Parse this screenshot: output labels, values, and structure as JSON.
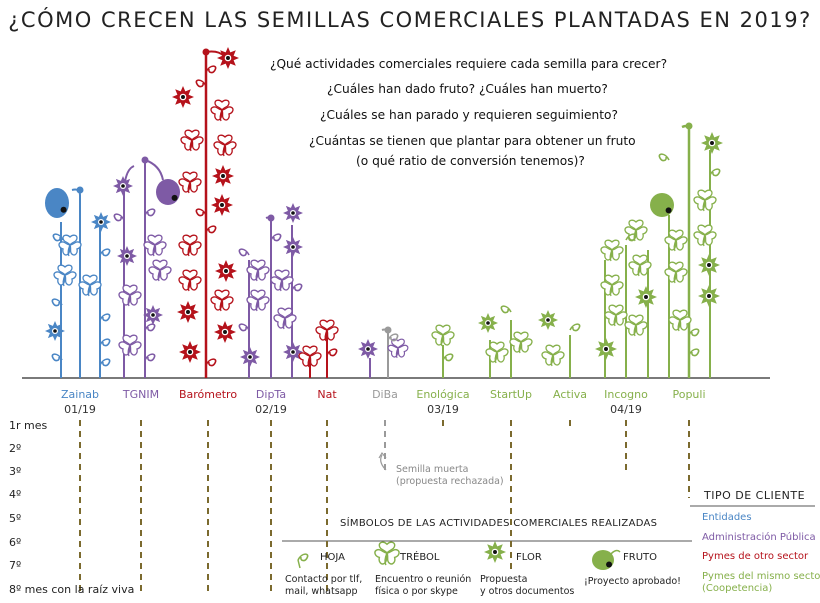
{
  "title": "¿CÓMO CRECEN LAS SEMILLAS COMERCIALES PLANTADAS EN 2019?",
  "questions": [
    "¿Qué actividades comerciales requiere cada semilla  para crecer?",
    "¿Cuáles han dado fruto? ¿Cuáles han muerto?",
    "¿Cuáles se han parado y requieren seguimiento?",
    "¿Cuántas se tienen que plantar para obtener un fruto",
    "(o qué ratio de conversión tenemos)?"
  ],
  "colors": {
    "entidades": "#4a86c5",
    "administracion": "#7e5aa5",
    "pymes_otro": "#b5121b",
    "pymes_mismo": "#86b04b",
    "dead": "#9a9a9a",
    "root": "#7b6a2e",
    "ground": "#7a7a7a"
  },
  "seeds": [
    {
      "name": "Zainab",
      "date": "01/19",
      "client": "entidades",
      "months": 8
    },
    {
      "name": "TGNIM",
      "date": "",
      "client": "administracion",
      "months": 8
    },
    {
      "name": "Barómetro",
      "date": "",
      "client": "pymes_otro",
      "months": 8
    },
    {
      "name": "DipTa",
      "date": "02/19",
      "client": "administracion",
      "months": 8
    },
    {
      "name": "Nat",
      "date": "",
      "client": "pymes_otro",
      "months": 8
    },
    {
      "name": "DiBa",
      "date": "",
      "client": "dead",
      "months": 3
    },
    {
      "name": "Enológica",
      "date": "03/19",
      "client": "pymes_mismo",
      "months": 1
    },
    {
      "name": "StartUp",
      "date": "",
      "client": "pymes_mismo",
      "months": 7
    },
    {
      "name": "Activa",
      "date": "",
      "client": "pymes_mismo",
      "months": 1
    },
    {
      "name": "Incogno",
      "date": "04/19",
      "client": "pymes_mismo",
      "months": 3
    },
    {
      "name": "Populi",
      "date": "",
      "client": "pymes_mismo",
      "months": 4
    }
  ],
  "months": [
    "1r mes",
    "2º",
    "3º",
    "4º",
    "5º",
    "6º",
    "7º",
    "8º mes con la raíz viva"
  ],
  "dead_note": [
    "Semilla muerta",
    "(propuesta rechazada)"
  ],
  "legend": {
    "title": "SÍMBOLOS DE LAS ACTIVIDADES COMERCIALES REALIZADAS",
    "symbols": [
      {
        "icon": "leaf-icon",
        "name": "HOJA",
        "desc": [
          "Contacto por tlf,",
          "mail, whatsapp"
        ]
      },
      {
        "icon": "clover-icon",
        "name": "TRÉBOL",
        "desc": [
          "Encuentro o reunión",
          "física o por skype"
        ]
      },
      {
        "icon": "flower-icon",
        "name": "FLOR",
        "desc": [
          "Propuesta",
          "y otros documentos"
        ]
      },
      {
        "icon": "fruit-icon",
        "name": "FRUTO",
        "desc": [
          "¡Proyecto aprobado!"
        ]
      }
    ]
  },
  "client_types": {
    "title": "TIPO DE CLIENTE",
    "items": [
      {
        "label": "Entidades",
        "key": "entidades"
      },
      {
        "label": "Administración Pública",
        "key": "administracion"
      },
      {
        "label": "Pymes de otro sector",
        "key": "pymes_otro"
      },
      {
        "label": "Pymes del mismo sector",
        "key": "pymes_mismo"
      },
      {
        "label": "(Coopetencia)",
        "key": "pymes_mismo"
      }
    ]
  }
}
